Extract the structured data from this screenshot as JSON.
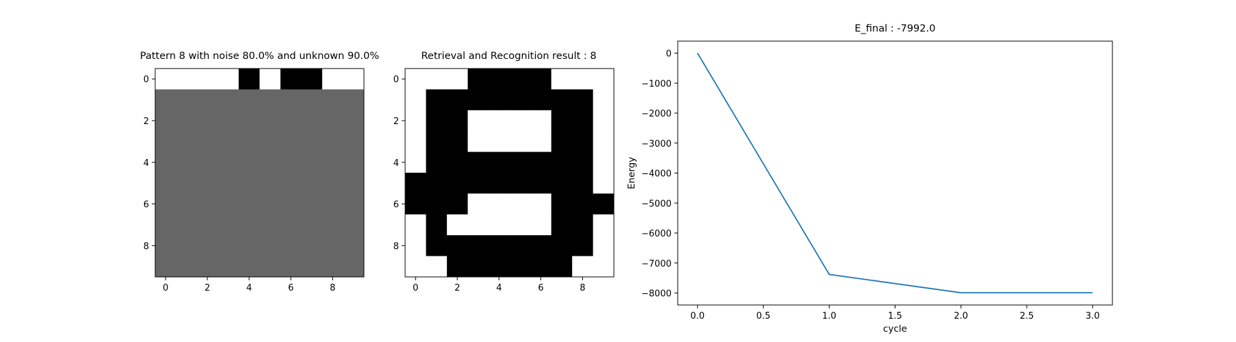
{
  "chart_data": [
    {
      "type": "heatmap",
      "title": "Pattern 8 with noise 80.0% and unknown 90.0%",
      "x_ticks": [
        "0",
        "2",
        "4",
        "6",
        "8"
      ],
      "y_ticks": [
        "0",
        "2",
        "4",
        "6",
        "8"
      ],
      "colors": {
        "1": "#ffffff",
        "0": "#666666",
        "-1": "#000000"
      },
      "grid": [
        [
          1,
          1,
          1,
          1,
          -1,
          1,
          -1,
          -1,
          1,
          1
        ],
        [
          0,
          0,
          0,
          0,
          0,
          0,
          0,
          0,
          0,
          0
        ],
        [
          0,
          0,
          0,
          0,
          0,
          0,
          0,
          0,
          0,
          0
        ],
        [
          0,
          0,
          0,
          0,
          0,
          0,
          0,
          0,
          0,
          0
        ],
        [
          0,
          0,
          0,
          0,
          0,
          0,
          0,
          0,
          0,
          0
        ],
        [
          0,
          0,
          0,
          0,
          0,
          0,
          0,
          0,
          0,
          0
        ],
        [
          0,
          0,
          0,
          0,
          0,
          0,
          0,
          0,
          0,
          0
        ],
        [
          0,
          0,
          0,
          0,
          0,
          0,
          0,
          0,
          0,
          0
        ],
        [
          0,
          0,
          0,
          0,
          0,
          0,
          0,
          0,
          0,
          0
        ],
        [
          0,
          0,
          0,
          0,
          0,
          0,
          0,
          0,
          0,
          0
        ]
      ]
    },
    {
      "type": "heatmap",
      "title": "Retrieval and Recognition result : 8",
      "x_ticks": [
        "0",
        "2",
        "4",
        "6",
        "8"
      ],
      "y_ticks": [
        "0",
        "2",
        "4",
        "6",
        "8"
      ],
      "colors": {
        "1": "#ffffff",
        "0": "#666666",
        "-1": "#000000"
      },
      "grid": [
        [
          1,
          1,
          1,
          -1,
          -1,
          -1,
          -1,
          1,
          1,
          1
        ],
        [
          1,
          -1,
          -1,
          -1,
          -1,
          -1,
          -1,
          -1,
          -1,
          1
        ],
        [
          1,
          -1,
          -1,
          1,
          1,
          1,
          1,
          -1,
          -1,
          1
        ],
        [
          1,
          -1,
          -1,
          1,
          1,
          1,
          1,
          -1,
          -1,
          1
        ],
        [
          1,
          -1,
          -1,
          -1,
          -1,
          -1,
          -1,
          -1,
          -1,
          1
        ],
        [
          -1,
          -1,
          -1,
          -1,
          -1,
          -1,
          -1,
          -1,
          -1,
          1
        ],
        [
          -1,
          -1,
          -1,
          1,
          1,
          1,
          1,
          -1,
          -1,
          -1
        ],
        [
          1,
          -1,
          1,
          1,
          1,
          1,
          1,
          -1,
          -1,
          1
        ],
        [
          1,
          -1,
          -1,
          -1,
          -1,
          -1,
          -1,
          -1,
          -1,
          1
        ],
        [
          1,
          1,
          -1,
          -1,
          -1,
          -1,
          -1,
          -1,
          1,
          1
        ]
      ]
    },
    {
      "type": "line",
      "title": "E_final : -7992.0",
      "xlabel": "cycle",
      "ylabel": "Energy",
      "x": [
        0,
        1,
        2,
        3
      ],
      "y": [
        0,
        -7380,
        -7992,
        -7992
      ],
      "xlim": [
        -0.15,
        3.15
      ],
      "ylim": [
        -8400,
        400
      ],
      "x_ticks": [
        0,
        0.5,
        1.0,
        1.5,
        2.0,
        2.5,
        3.0
      ],
      "x_tick_labels": [
        "0.0",
        "0.5",
        "1.0",
        "1.5",
        "2.0",
        "2.5",
        "3.0"
      ],
      "y_ticks": [
        0,
        -1000,
        -2000,
        -3000,
        -4000,
        -5000,
        -6000,
        -7000,
        -8000
      ],
      "y_tick_labels": [
        "0",
        "−1000",
        "−2000",
        "−3000",
        "−4000",
        "−5000",
        "−6000",
        "−7000",
        "−8000"
      ],
      "line_color": "#1f77b4"
    }
  ]
}
